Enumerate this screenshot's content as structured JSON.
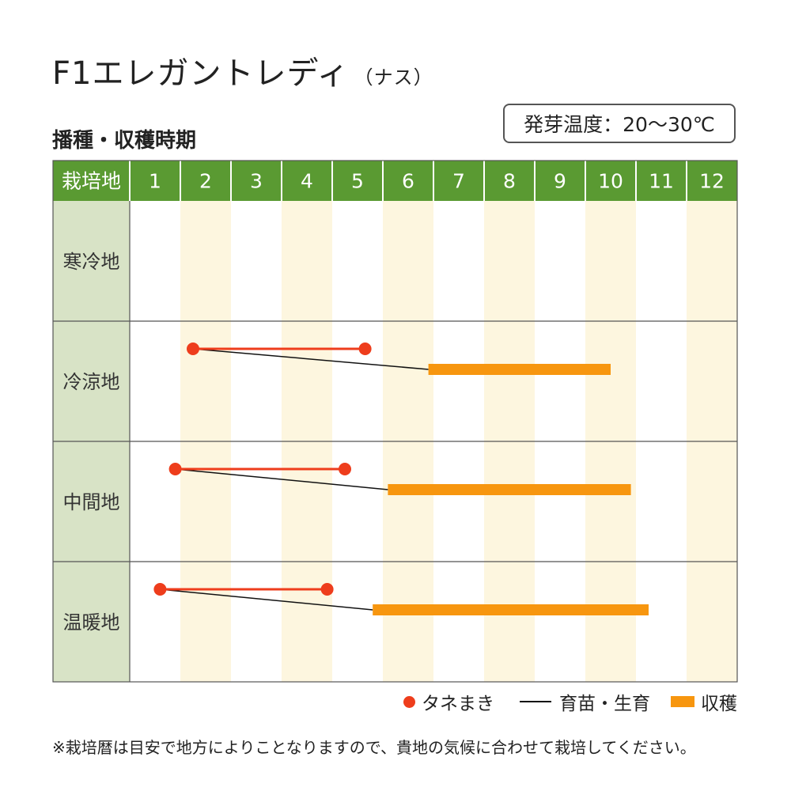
{
  "title": {
    "main": "F1エレガントレディ",
    "sub": "（ナス）"
  },
  "section_title": "播種・収穫時期",
  "germination": {
    "label": "発芽温度：20～30℃"
  },
  "colors": {
    "header_green": "#5a9a32",
    "region_col": "#d8e3c6",
    "odd_month_stripe": "#fdf6df",
    "sowing": "#ee3d1c",
    "harvest": "#f7960f",
    "growing_line": "#111111",
    "grid": "#555555"
  },
  "chart_data": {
    "type": "gantt",
    "header_label": "栽培地",
    "months": [
      "1",
      "2",
      "3",
      "4",
      "5",
      "6",
      "7",
      "8",
      "9",
      "10",
      "11",
      "12"
    ],
    "regions": [
      {
        "name": "寒冷地"
      },
      {
        "name": "冷涼地",
        "sowing": [
          2.25,
          5.65
        ],
        "harvest": [
          6.9,
          10.5
        ]
      },
      {
        "name": "中間地",
        "sowing": [
          1.9,
          5.25
        ],
        "harvest": [
          6.1,
          10.9
        ]
      },
      {
        "name": "温暖地",
        "sowing": [
          1.6,
          4.9
        ],
        "harvest": [
          5.8,
          11.25
        ]
      }
    ]
  },
  "legend": {
    "sowing": "タネまき",
    "growing": "育苗・生育",
    "harvest": "収穫"
  },
  "footnote": "※栽培暦は目安で地方によりことなりますので、貴地の気候に合わせて栽培してください。"
}
